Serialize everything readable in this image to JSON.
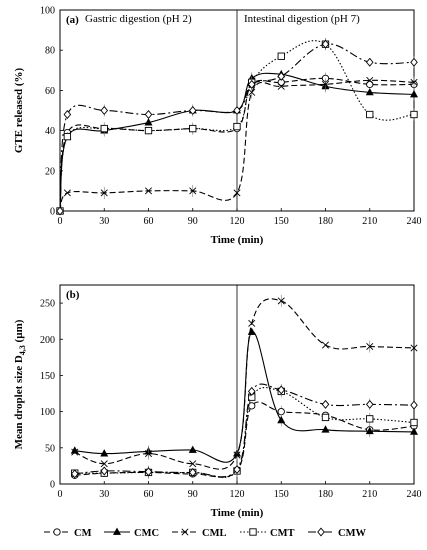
{
  "legend": {
    "placement": "bottom",
    "entries": [
      {
        "key": "CM",
        "label": "CM"
      },
      {
        "key": "CMC",
        "label": "CMC"
      },
      {
        "key": "CML",
        "label": "CML"
      },
      {
        "key": "CMT",
        "label": "CMT"
      },
      {
        "key": "CMW",
        "label": "CMW"
      }
    ]
  },
  "chart_data": [
    {
      "type": "line",
      "panel_label": "(a)",
      "phase_labels": [
        "Gastric digestion (pH 2)",
        "Intestinal digestion (pH 7)"
      ],
      "divider_x": 120,
      "xlabel": "Time (min)",
      "ylabel": "GTE released (%)",
      "xlim": [
        0,
        240
      ],
      "ylim": [
        0,
        100
      ],
      "xticks": [
        0,
        30,
        60,
        90,
        120,
        150,
        180,
        210,
        240
      ],
      "yticks": [
        0,
        20,
        40,
        60,
        80,
        100
      ],
      "grid": false,
      "series": [
        {
          "name": "CM",
          "marker": "circle",
          "dash": "6 3",
          "x": [
            0,
            5,
            30,
            60,
            90,
            120,
            130,
            150,
            180,
            210,
            240
          ],
          "y": [
            0,
            39,
            41,
            40,
            41,
            41,
            63,
            64,
            66,
            63,
            63
          ]
        },
        {
          "name": "CMC",
          "marker": "triangle",
          "dash": "",
          "x": [
            0,
            5,
            30,
            60,
            90,
            120,
            130,
            150,
            180,
            210,
            240
          ],
          "y": [
            0,
            37,
            40,
            44,
            50,
            50,
            66,
            68,
            62,
            59,
            58
          ]
        },
        {
          "name": "CML",
          "marker": "x",
          "dash": "6 3",
          "x": [
            0,
            5,
            30,
            60,
            90,
            120,
            130,
            150,
            180,
            210,
            240
          ],
          "y": [
            0,
            9,
            9,
            10,
            10,
            9,
            59,
            62,
            63,
            65,
            64
          ]
        },
        {
          "name": "CMT",
          "marker": "square",
          "dash": "1.5 2",
          "x": [
            0,
            5,
            30,
            60,
            90,
            120,
            130,
            150,
            180,
            210,
            240
          ],
          "y": [
            0,
            37,
            41,
            40,
            41,
            42,
            64,
            77,
            83,
            48,
            48
          ]
        },
        {
          "name": "CMW",
          "marker": "diamond",
          "dash": "8 3 2 3",
          "x": [
            0,
            5,
            30,
            60,
            90,
            120,
            130,
            150,
            180,
            210,
            240
          ],
          "y": [
            0,
            48,
            50,
            48,
            50,
            50,
            63,
            67,
            83,
            74,
            74
          ]
        }
      ]
    },
    {
      "type": "line",
      "panel_label": "(b)",
      "divider_x": 120,
      "xlabel": "Time (min)",
      "ylabel": "Mean droplet size D",
      "ylabel_sub": "4,3",
      "ylabel_unit": " (µm)",
      "xlim": [
        0,
        240
      ],
      "ylim": [
        0,
        275
      ],
      "xticks": [
        0,
        30,
        60,
        90,
        120,
        150,
        180,
        210,
        240
      ],
      "yticks": [
        0,
        50,
        100,
        150,
        200,
        250
      ],
      "grid": false,
      "series": [
        {
          "name": "CM",
          "marker": "circle",
          "dash": "6 3",
          "x": [
            10,
            30,
            60,
            90,
            120,
            130,
            150,
            180,
            210,
            240
          ],
          "y": [
            12,
            15,
            16,
            14,
            18,
            108,
            100,
            95,
            75,
            80
          ]
        },
        {
          "name": "CMC",
          "marker": "triangle",
          "dash": "",
          "x": [
            10,
            30,
            60,
            90,
            120,
            130,
            150,
            180,
            210,
            240
          ],
          "y": [
            46,
            42,
            45,
            47,
            42,
            210,
            88,
            75,
            73,
            72
          ]
        },
        {
          "name": "CML",
          "marker": "x",
          "dash": "6 3",
          "x": [
            10,
            30,
            60,
            90,
            120,
            130,
            150,
            180,
            210,
            240
          ],
          "y": [
            44,
            28,
            42,
            28,
            40,
            222,
            253,
            192,
            190,
            188
          ]
        },
        {
          "name": "CMT",
          "marker": "square",
          "dash": "1.5 2",
          "x": [
            10,
            30,
            60,
            90,
            120,
            130,
            150,
            180,
            210,
            240
          ],
          "y": [
            15,
            15,
            16,
            16,
            18,
            120,
            128,
            92,
            90,
            85
          ]
        },
        {
          "name": "CMW",
          "marker": "diamond",
          "dash": "8 3 2 3",
          "x": [
            10,
            30,
            60,
            90,
            120,
            130,
            150,
            180,
            210,
            240
          ],
          "y": [
            14,
            18,
            17,
            16,
            20,
            128,
            130,
            110,
            110,
            109
          ]
        }
      ]
    }
  ]
}
